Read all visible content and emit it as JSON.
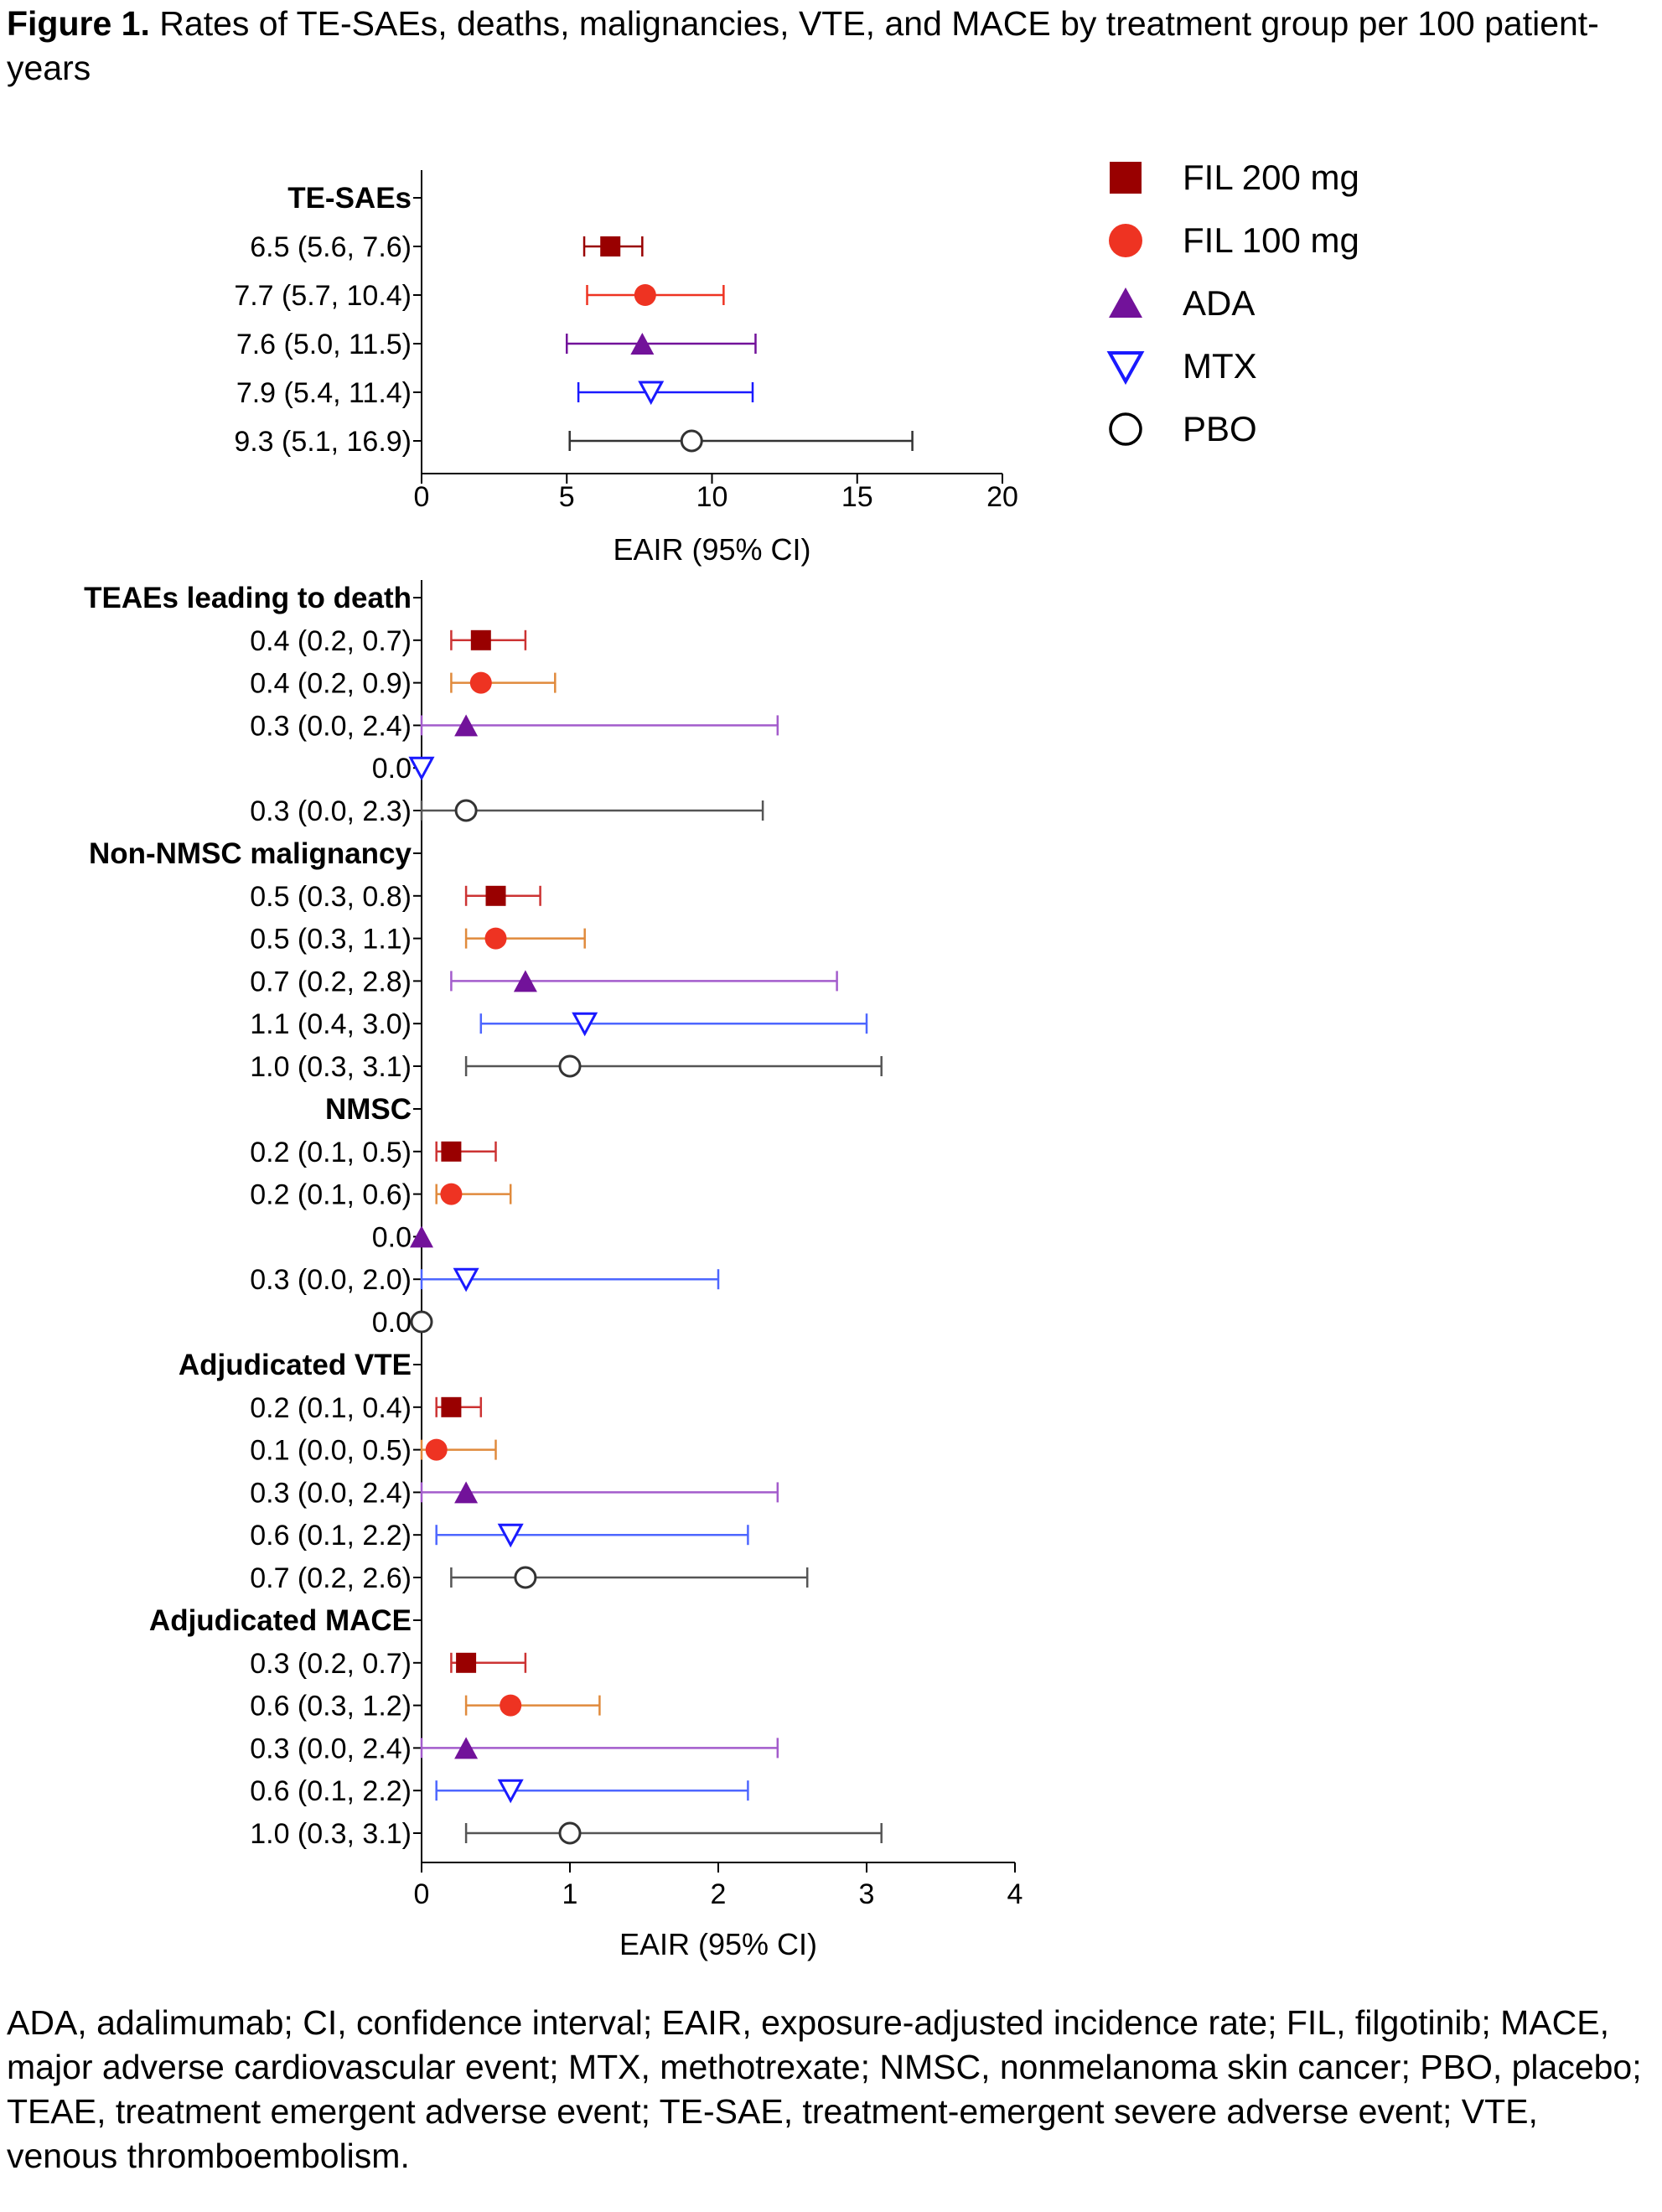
{
  "figure": {
    "title_bold": "Figure 1.",
    "title_rest": "Rates of TE-SAEs, deaths, malignancies, VTE, and MACE by treatment group per 100 patient-years",
    "footnote": "ADA, adalimumab; CI, confidence interval; EAIR, exposure-adjusted incidence rate; FIL, filgotinib; MACE, major adverse cardiovascular event; MTX, methotrexate; NMSC, nonmelanoma skin cancer; PBO, placebo; TEAE, treatment emergent adverse event; TE-SAE, treatment-emergent severe adverse event; VTE, venous thromboembolism."
  },
  "legend": [
    {
      "name": "FIL 200 mg",
      "marker": "square",
      "color": "#990000"
    },
    {
      "name": "FIL 100 mg",
      "marker": "circle",
      "color": "#ee3322"
    },
    {
      "name": "ADA",
      "marker": "triangle",
      "color": "#72129a"
    },
    {
      "name": "MTX",
      "marker": "triangle-down-open",
      "color": "#1a1aff"
    },
    {
      "name": "PBO",
      "marker": "circle-open",
      "color": "#333333"
    }
  ],
  "chart_data": [
    {
      "type": "forest",
      "xlabel": "EAIR (95% CI)",
      "xlim": [
        0,
        20
      ],
      "xticks": [
        "0",
        "5",
        "10",
        "15",
        "20"
      ],
      "groups": [
        {
          "label": "TE-SAEs",
          "rows": [
            {
              "series": "FIL 200 mg",
              "label": "6.5 (5.6, 7.6)",
              "value": 6.5,
              "low": 5.6,
              "high": 7.6
            },
            {
              "series": "FIL 100 mg",
              "label": "7.7 (5.7, 10.4)",
              "value": 7.7,
              "low": 5.7,
              "high": 10.4
            },
            {
              "series": "ADA",
              "label": "7.6 (5.0, 11.5)",
              "value": 7.6,
              "low": 5.0,
              "high": 11.5
            },
            {
              "series": "MTX",
              "label": "7.9 (5.4, 11.4)",
              "value": 7.9,
              "low": 5.4,
              "high": 11.4
            },
            {
              "series": "PBO",
              "label": "9.3 (5.1, 16.9)",
              "value": 9.3,
              "low": 5.1,
              "high": 16.9
            }
          ]
        }
      ]
    },
    {
      "type": "forest",
      "xlabel": "EAIR (95% CI)",
      "xlim": [
        0,
        4
      ],
      "xticks": [
        "0",
        "1",
        "2",
        "3",
        "4"
      ],
      "groups": [
        {
          "label": "TEAEs leading to death",
          "rows": [
            {
              "series": "FIL 200 mg",
              "label": "0.4 (0.2, 0.7)",
              "value": 0.4,
              "low": 0.2,
              "high": 0.7
            },
            {
              "series": "FIL 100 mg",
              "label": "0.4 (0.2, 0.9)",
              "value": 0.4,
              "low": 0.2,
              "high": 0.9
            },
            {
              "series": "ADA",
              "label": "0.3 (0.0, 2.4)",
              "value": 0.3,
              "low": 0.0,
              "high": 2.4
            },
            {
              "series": "MTX",
              "label": "0.0",
              "value": 0.0,
              "low": null,
              "high": null
            },
            {
              "series": "PBO",
              "label": "0.3 (0.0, 2.3)",
              "value": 0.3,
              "low": 0.0,
              "high": 2.3
            }
          ]
        },
        {
          "label": "Non-NMSC malignancy",
          "rows": [
            {
              "series": "FIL 200 mg",
              "label": "0.5 (0.3, 0.8)",
              "value": 0.5,
              "low": 0.3,
              "high": 0.8
            },
            {
              "series": "FIL 100 mg",
              "label": "0.5 (0.3, 1.1)",
              "value": 0.5,
              "low": 0.3,
              "high": 1.1
            },
            {
              "series": "ADA",
              "label": "0.7 (0.2, 2.8)",
              "value": 0.7,
              "low": 0.2,
              "high": 2.8
            },
            {
              "series": "MTX",
              "label": "1.1 (0.4, 3.0)",
              "value": 1.1,
              "low": 0.4,
              "high": 3.0
            },
            {
              "series": "PBO",
              "label": "1.0 (0.3, 3.1)",
              "value": 1.0,
              "low": 0.3,
              "high": 3.1
            }
          ]
        },
        {
          "label": "NMSC",
          "rows": [
            {
              "series": "FIL 200 mg",
              "label": "0.2 (0.1, 0.5)",
              "value": 0.2,
              "low": 0.1,
              "high": 0.5
            },
            {
              "series": "FIL 100 mg",
              "label": "0.2 (0.1, 0.6)",
              "value": 0.2,
              "low": 0.1,
              "high": 0.6
            },
            {
              "series": "ADA",
              "label": "0.0",
              "value": 0.0,
              "low": null,
              "high": null
            },
            {
              "series": "MTX",
              "label": "0.3 (0.0, 2.0)",
              "value": 0.3,
              "low": 0.0,
              "high": 2.0
            },
            {
              "series": "PBO",
              "label": "0.0",
              "value": 0.0,
              "low": null,
              "high": null
            }
          ]
        },
        {
          "label": "Adjudicated VTE",
          "rows": [
            {
              "series": "FIL 200 mg",
              "label": "0.2 (0.1, 0.4)",
              "value": 0.2,
              "low": 0.1,
              "high": 0.4
            },
            {
              "series": "FIL 100 mg",
              "label": "0.1 (0.0, 0.5)",
              "value": 0.1,
              "low": 0.0,
              "high": 0.5
            },
            {
              "series": "ADA",
              "label": "0.3 (0.0, 2.4)",
              "value": 0.3,
              "low": 0.0,
              "high": 2.4
            },
            {
              "series": "MTX",
              "label": "0.6 (0.1, 2.2)",
              "value": 0.6,
              "low": 0.1,
              "high": 2.2
            },
            {
              "series": "PBO",
              "label": "0.7 (0.2, 2.6)",
              "value": 0.7,
              "low": 0.2,
              "high": 2.6
            }
          ]
        },
        {
          "label": "Adjudicated MACE",
          "rows": [
            {
              "series": "FIL 200 mg",
              "label": "0.3 (0.2, 0.7)",
              "value": 0.3,
              "low": 0.2,
              "high": 0.7
            },
            {
              "series": "FIL 100 mg",
              "label": "0.6 (0.3, 1.2)",
              "value": 0.6,
              "low": 0.3,
              "high": 1.2
            },
            {
              "series": "ADA",
              "label": "0.3 (0.0, 2.4)",
              "value": 0.3,
              "low": 0.0,
              "high": 2.4
            },
            {
              "series": "MTX",
              "label": "0.6 (0.1, 2.2)",
              "value": 0.6,
              "low": 0.1,
              "high": 2.2
            },
            {
              "series": "PBO",
              "label": "1.0 (0.3, 3.1)",
              "value": 1.0,
              "low": 0.3,
              "high": 3.1
            }
          ]
        }
      ]
    }
  ]
}
